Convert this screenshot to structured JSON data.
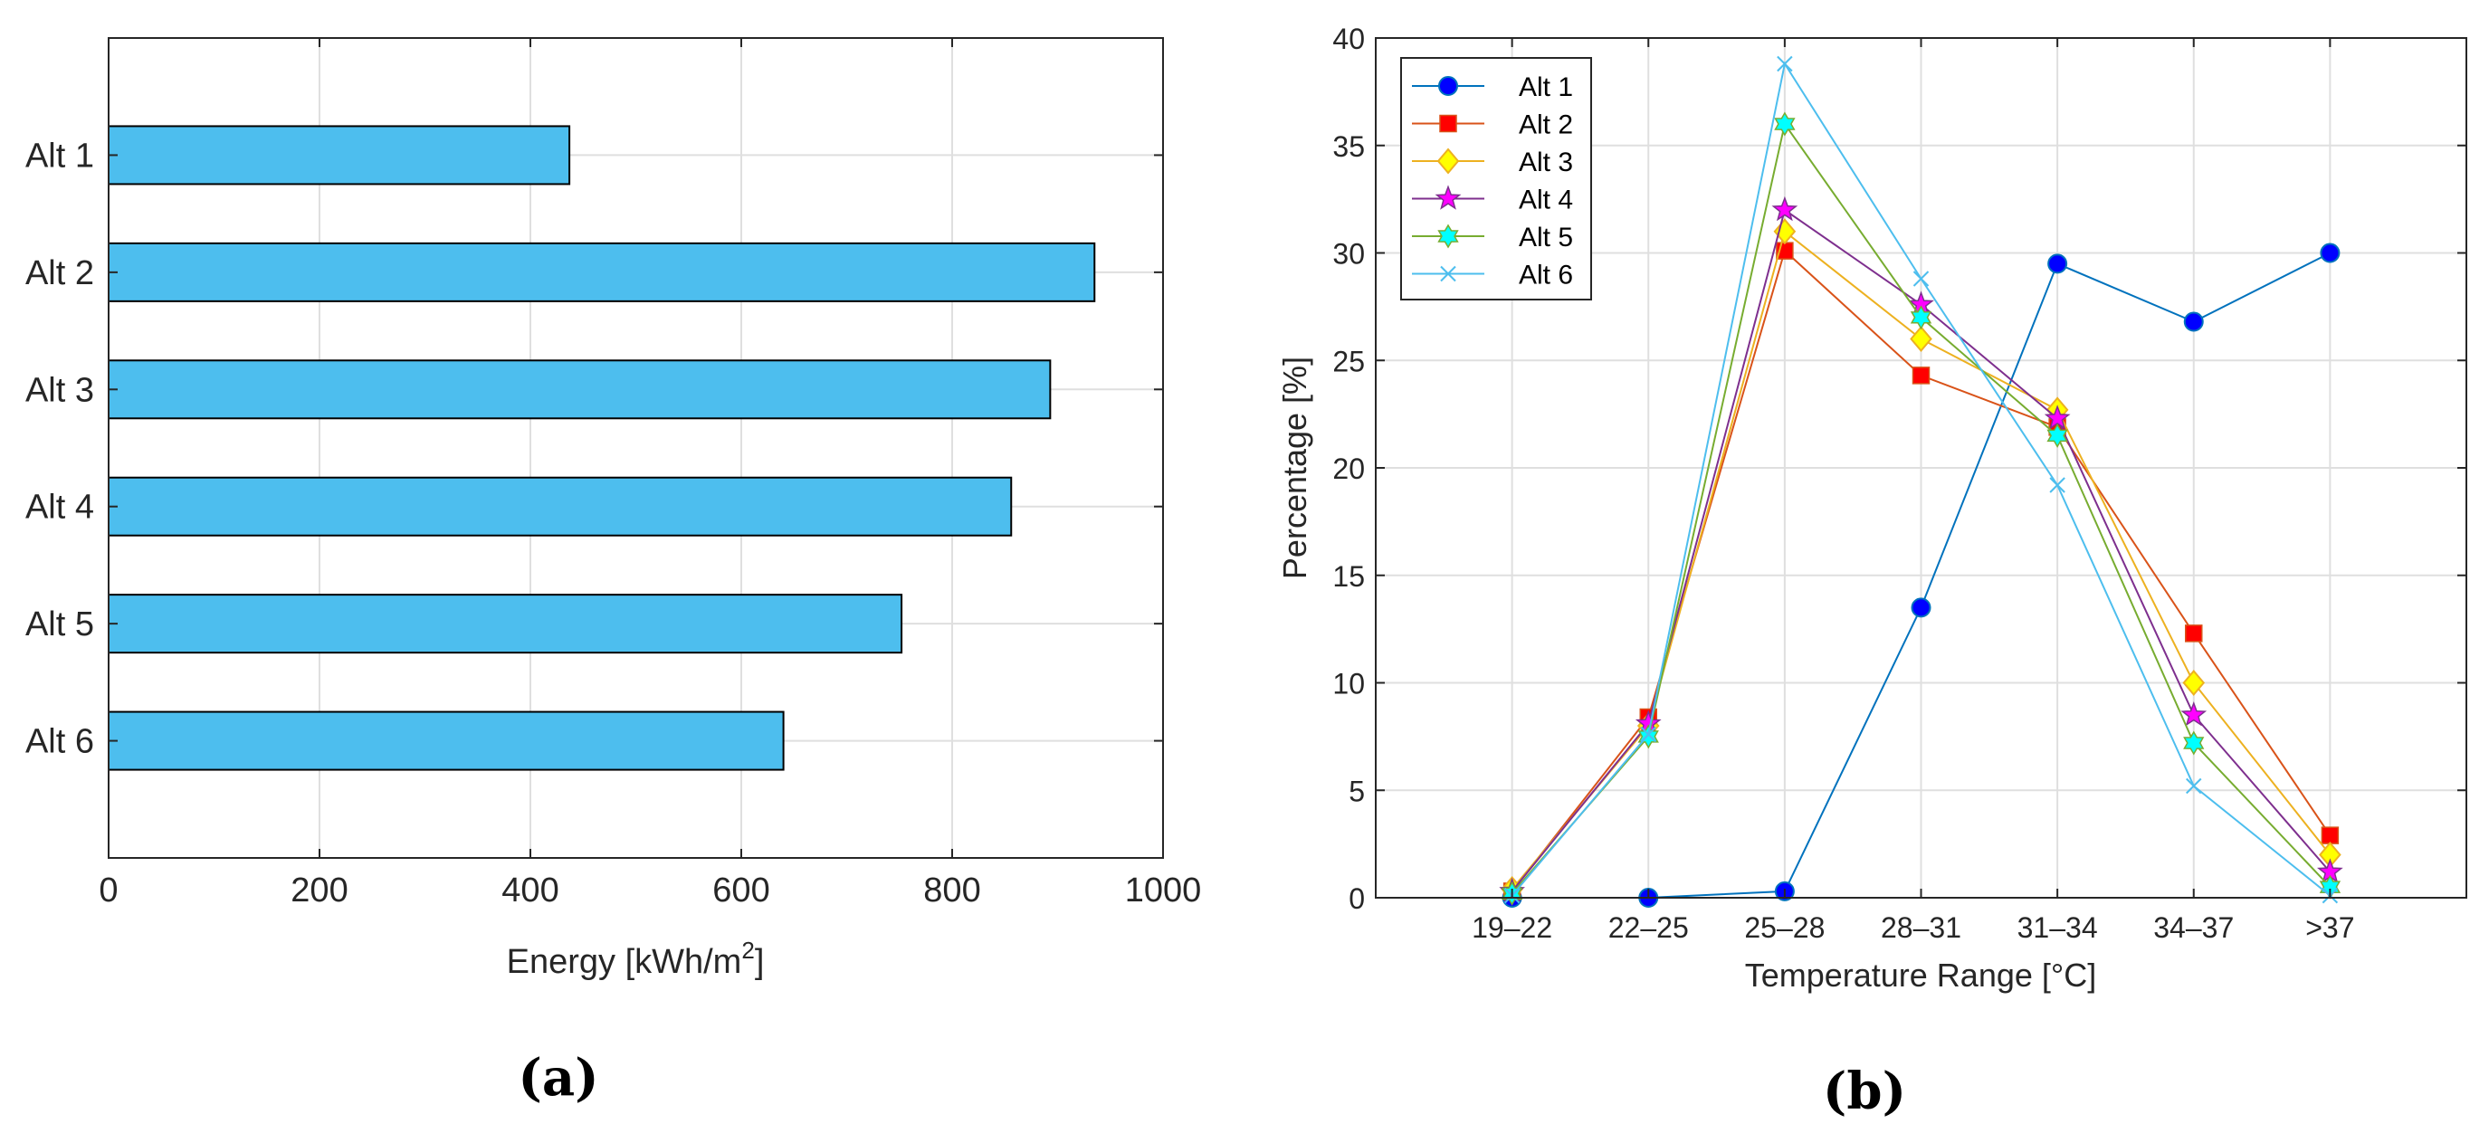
{
  "chart_data": [
    {
      "type": "bar",
      "orientation": "horizontal",
      "panel_label": "(a)",
      "categories": [
        "Alt 1",
        "Alt 2",
        "Alt 3",
        "Alt 4",
        "Alt 5",
        "Alt 6"
      ],
      "values": [
        437,
        935,
        893,
        856,
        752,
        640
      ],
      "xlabel_main": "Energy [kWh/m",
      "xlabel_sup": "2",
      "xlabel_end": "]",
      "ylabel": "",
      "xlim": [
        0,
        1000
      ],
      "xticks": [
        0,
        200,
        400,
        600,
        800,
        1000
      ],
      "grid": true,
      "bar_color": "#4DBEEE"
    },
    {
      "type": "line",
      "panel_label": "(b)",
      "categories": [
        "19–22",
        "22–25",
        "25–28",
        "28–31",
        "31–34",
        "34–37",
        ">37"
      ],
      "xlabel": "Temperature Range [°C]",
      "ylabel": "Percentage [%]",
      "ylim": [
        0,
        40
      ],
      "yticks": [
        0,
        5,
        10,
        15,
        20,
        25,
        30,
        35,
        40
      ],
      "grid": true,
      "legend": "top-left",
      "series": [
        {
          "name": "Alt 1",
          "values": [
            0.0,
            0.0,
            0.3,
            13.5,
            29.5,
            26.8,
            30.0
          ],
          "color": "#0072BD",
          "marker": "circle",
          "fill": "#0000FF"
        },
        {
          "name": "Alt 2",
          "values": [
            0.3,
            8.4,
            30.1,
            24.3,
            21.9,
            12.3,
            2.9
          ],
          "color": "#D95319",
          "marker": "square",
          "fill": "#FF0000"
        },
        {
          "name": "Alt 3",
          "values": [
            0.4,
            8.0,
            31.0,
            26.0,
            22.7,
            10.0,
            2.0
          ],
          "color": "#EDB120",
          "marker": "diamond",
          "fill": "#FFFF00"
        },
        {
          "name": "Alt 4",
          "values": [
            0.3,
            8.1,
            32.0,
            27.6,
            22.3,
            8.5,
            1.2
          ],
          "color": "#7E2F8E",
          "marker": "pentagram",
          "fill": "#FF00FF"
        },
        {
          "name": "Alt 5",
          "values": [
            0.2,
            7.5,
            36.0,
            27.0,
            21.5,
            7.2,
            0.5
          ],
          "color": "#77AC30",
          "marker": "hexagram",
          "fill": "#00FFFF"
        },
        {
          "name": "Alt 6",
          "values": [
            0.1,
            7.6,
            38.8,
            28.8,
            19.2,
            5.2,
            0.1
          ],
          "color": "#4DBEEE",
          "marker": "x",
          "fill": "none"
        }
      ]
    }
  ]
}
